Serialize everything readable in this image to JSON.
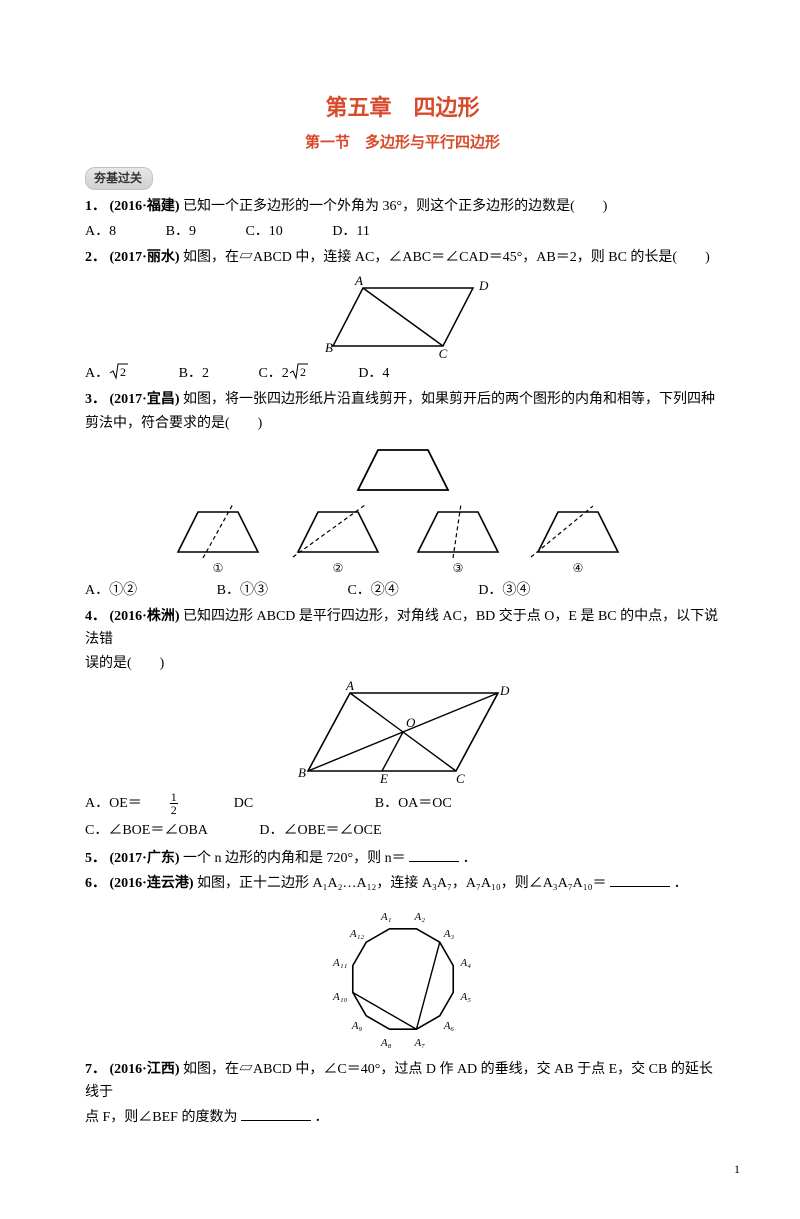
{
  "chapter_title": "第五章　四边形",
  "section_title": "第一节　多边形与平行四边形",
  "pill": "夯基过关",
  "q1": {
    "num": "1．",
    "src": "(2016·福建)",
    "text": "已知一个正多边形的一个外角为 36°，则这个正多边形的边数是(　　)",
    "A": "A．8",
    "B": "B．9",
    "C": "C．10",
    "D": "D．11"
  },
  "q2": {
    "num": "2．",
    "src": "(2017·丽水)",
    "text": "如图，在▱ABCD 中，连接 AC，∠ABC＝∠CAD＝45°，AB＝2，则 BC 的长是(　　)",
    "A": "A．√2",
    "B": "B．2",
    "C": "C．2√2",
    "D": "D．4",
    "fig": {
      "A": "A",
      "B": "B",
      "C": "C",
      "D": "D"
    }
  },
  "q3": {
    "num": "3．",
    "src": "(2017·宜昌)",
    "text1": "如图，将一张四边形纸片沿直线剪开，如果剪开后的两个图形的内角和相等，下列四种",
    "text2": "剪法中，符合要求的是(　　)",
    "labels": {
      "l1": "①",
      "l2": "②",
      "l3": "③",
      "l4": "④"
    },
    "A": "A．①②",
    "B": "B．①③",
    "C": "C．②④",
    "D": "D．③④"
  },
  "q4": {
    "num": "4．",
    "src": "(2016·株洲)",
    "text1": "已知四边形 ABCD 是平行四边形，对角线 AC，BD 交于点 O，E 是 BC 的中点，以下说法错",
    "text2": "误的是(　　)",
    "fig": {
      "A": "A",
      "B": "B",
      "C": "C",
      "D": "D",
      "E": "E",
      "O": "O"
    },
    "A1": "A．OE＝",
    "A2": "DC",
    "B": "B．OA＝OC",
    "C": "C．∠BOE＝∠OBA",
    "D": "D．∠OBE＝∠OCE"
  },
  "q5": {
    "num": "5．",
    "src": "(2017·广东)",
    "text": "一个 n 边形的内角和是 720°，则 n＝",
    "period": "．"
  },
  "q6": {
    "num": "6．",
    "src": "(2016·连云港)",
    "text": "如图，正十二边形 A₁A₂…A₁₂，连接 A₃A₇，A₇A₁₀，则∠A₃A₇A₁₀＝",
    "period": "．",
    "labels": [
      "A₁",
      "A₂",
      "A₃",
      "A₄",
      "A₅",
      "A₆",
      "A₇",
      "A₈",
      "A₉",
      "A₁₀",
      "A₁₁",
      "A₁₂"
    ]
  },
  "q7": {
    "num": "7．",
    "src": "(2016·江西)",
    "text1": "如图，在▱ABCD 中，∠C＝40°，过点 D 作 AD 的垂线，交 AB 于点 E，交 CB 的延长线于",
    "text2": "点 F，则∠BEF 的度数为",
    "period": "．"
  },
  "pagenum": "1"
}
